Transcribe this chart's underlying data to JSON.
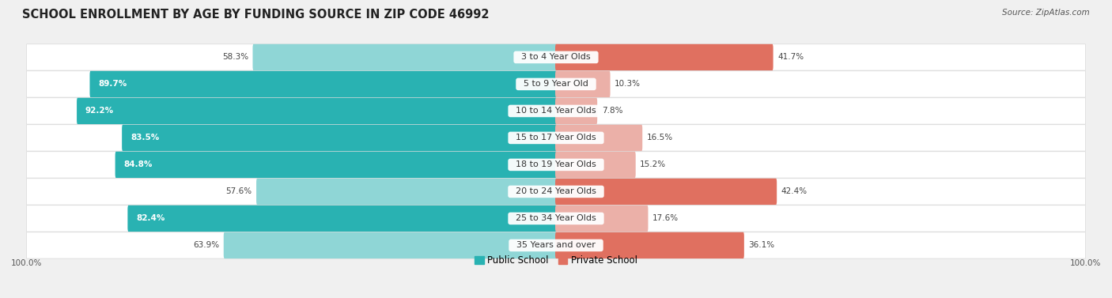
{
  "title": "SCHOOL ENROLLMENT BY AGE BY FUNDING SOURCE IN ZIP CODE 46992",
  "source": "Source: ZipAtlas.com",
  "categories": [
    "3 to 4 Year Olds",
    "5 to 9 Year Old",
    "10 to 14 Year Olds",
    "15 to 17 Year Olds",
    "18 to 19 Year Olds",
    "20 to 24 Year Olds",
    "25 to 34 Year Olds",
    "35 Years and over"
  ],
  "public_values": [
    58.3,
    89.7,
    92.2,
    83.5,
    84.8,
    57.6,
    82.4,
    63.9
  ],
  "private_values": [
    41.7,
    10.3,
    7.8,
    16.5,
    15.2,
    42.4,
    17.6,
    36.1
  ],
  "public_colors_dark": "#29b2b2",
  "public_colors_light": "#8fd6d6",
  "private_colors_dark": "#e07060",
  "private_colors_light": "#ebb0a8",
  "dark_threshold_pub": 75.0,
  "dark_threshold_priv": 35.0,
  "public_label": "Public School",
  "private_label": "Private School",
  "bg_color": "#f0f0f0",
  "row_bg_color": "#ffffff",
  "row_border_color": "#d8d8d8",
  "title_fontsize": 10.5,
  "source_fontsize": 7.5,
  "label_fontsize": 8,
  "value_fontsize": 7.5,
  "legend_fontsize": 8.5,
  "axis_label": "100.0%",
  "xlim": 100
}
